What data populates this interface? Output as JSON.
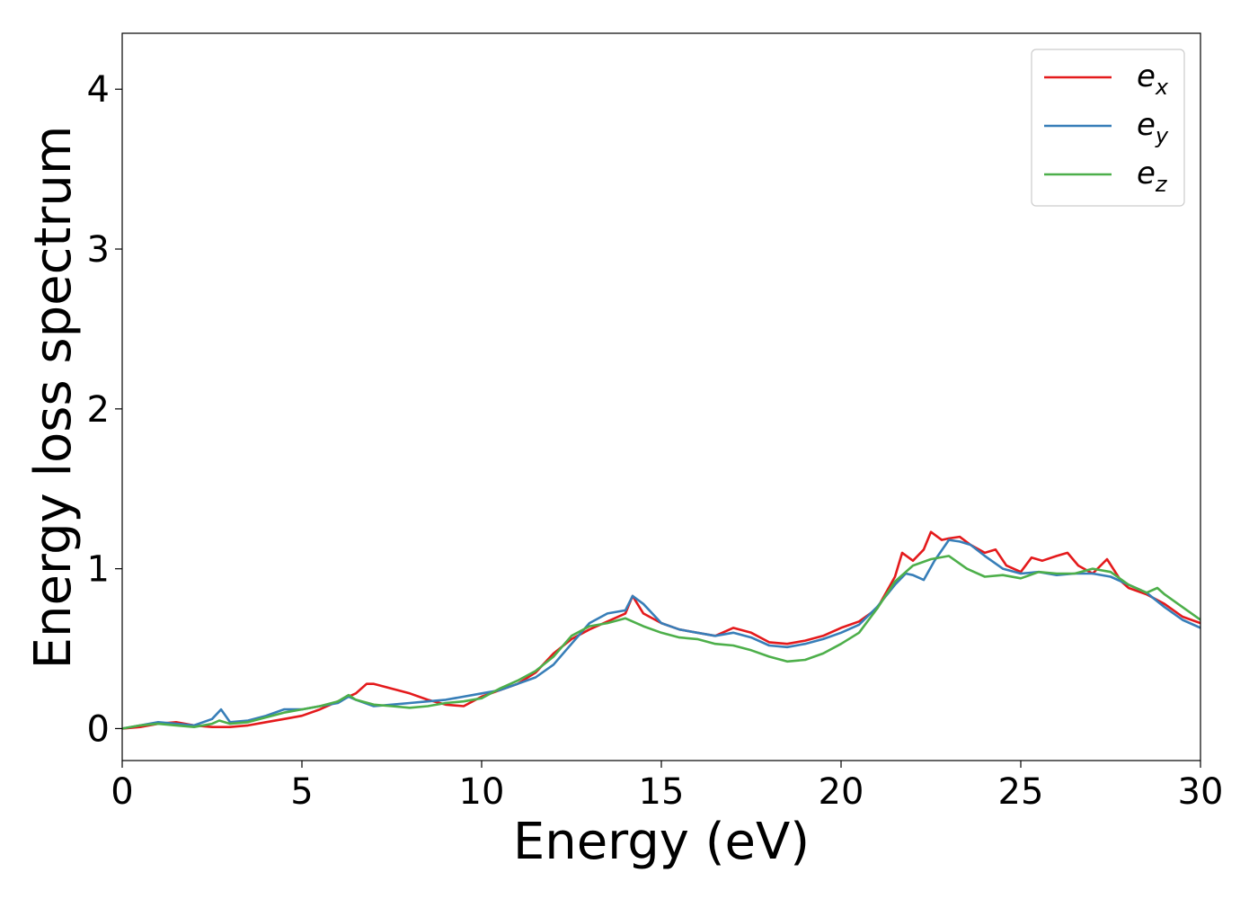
{
  "chart_data": {
    "type": "line",
    "title": "",
    "xlabel": "Energy (eV)",
    "ylabel": "Energy loss spectrum",
    "xlim": [
      0,
      30
    ],
    "ylim": [
      -0.2,
      4.35
    ],
    "xticks": [
      0,
      5,
      10,
      15,
      20,
      25,
      30
    ],
    "yticks": [
      0,
      1,
      2,
      3,
      4
    ],
    "grid": false,
    "legend_position": "top-right",
    "series": [
      {
        "name": "e",
        "subscript": "x",
        "color": "#e41a1c",
        "x": [
          0,
          0.5,
          1.0,
          1.5,
          2.0,
          2.5,
          3.0,
          3.5,
          4.0,
          4.5,
          5.0,
          5.5,
          6.0,
          6.5,
          6.8,
          7.0,
          7.5,
          8.0,
          8.5,
          9.0,
          9.5,
          10.0,
          10.5,
          11.0,
          11.5,
          12.0,
          12.5,
          13.0,
          13.5,
          14.0,
          14.2,
          14.5,
          15.0,
          15.5,
          16.0,
          16.5,
          17.0,
          17.5,
          18.0,
          18.5,
          19.0,
          19.5,
          20.0,
          20.5,
          21.0,
          21.5,
          21.7,
          22.0,
          22.3,
          22.5,
          22.8,
          23.0,
          23.3,
          23.6,
          24.0,
          24.3,
          24.6,
          25.0,
          25.3,
          25.6,
          26.0,
          26.3,
          26.6,
          27.0,
          27.4,
          27.8,
          28.0,
          28.5,
          29.0,
          29.5,
          30.0
        ],
        "y": [
          0.0,
          0.01,
          0.03,
          0.04,
          0.02,
          0.01,
          0.01,
          0.02,
          0.04,
          0.06,
          0.08,
          0.12,
          0.17,
          0.22,
          0.28,
          0.28,
          0.25,
          0.22,
          0.18,
          0.15,
          0.14,
          0.2,
          0.24,
          0.28,
          0.35,
          0.47,
          0.56,
          0.62,
          0.67,
          0.72,
          0.83,
          0.72,
          0.66,
          0.62,
          0.6,
          0.58,
          0.63,
          0.6,
          0.54,
          0.53,
          0.55,
          0.58,
          0.63,
          0.67,
          0.75,
          0.95,
          1.1,
          1.05,
          1.12,
          1.23,
          1.18,
          1.19,
          1.2,
          1.15,
          1.1,
          1.12,
          1.02,
          0.98,
          1.07,
          1.05,
          1.08,
          1.1,
          1.02,
          0.97,
          1.06,
          0.92,
          0.88,
          0.84,
          0.78,
          0.7,
          0.66
        ]
      },
      {
        "name": "e",
        "subscript": "y",
        "color": "#377eb8",
        "x": [
          0,
          0.5,
          1.0,
          1.5,
          2.0,
          2.5,
          2.75,
          3.0,
          3.5,
          4.0,
          4.5,
          5.0,
          5.5,
          6.0,
          6.3,
          6.5,
          7.0,
          7.5,
          8.0,
          8.5,
          9.0,
          9.5,
          10.0,
          10.5,
          11.0,
          11.5,
          12.0,
          12.5,
          13.0,
          13.5,
          14.0,
          14.2,
          14.5,
          15.0,
          15.5,
          16.0,
          16.5,
          17.0,
          17.5,
          18.0,
          18.5,
          19.0,
          19.5,
          20.0,
          20.5,
          21.0,
          21.5,
          21.8,
          22.0,
          22.3,
          22.6,
          23.0,
          23.3,
          23.6,
          24.0,
          24.5,
          25.0,
          25.5,
          26.0,
          26.5,
          27.0,
          27.5,
          28.0,
          28.5,
          29.0,
          29.5,
          30.0
        ],
        "y": [
          0.0,
          0.02,
          0.04,
          0.03,
          0.02,
          0.06,
          0.12,
          0.04,
          0.05,
          0.08,
          0.12,
          0.12,
          0.14,
          0.16,
          0.2,
          0.18,
          0.14,
          0.15,
          0.16,
          0.17,
          0.18,
          0.2,
          0.22,
          0.24,
          0.28,
          0.32,
          0.4,
          0.53,
          0.66,
          0.72,
          0.74,
          0.83,
          0.78,
          0.66,
          0.62,
          0.6,
          0.58,
          0.6,
          0.57,
          0.52,
          0.51,
          0.53,
          0.56,
          0.6,
          0.65,
          0.76,
          0.9,
          0.97,
          0.96,
          0.93,
          1.05,
          1.18,
          1.17,
          1.15,
          1.08,
          1.0,
          0.97,
          0.98,
          0.96,
          0.97,
          0.97,
          0.95,
          0.9,
          0.85,
          0.76,
          0.68,
          0.63
        ]
      },
      {
        "name": "e",
        "subscript": "z",
        "color": "#4daf4a",
        "x": [
          0,
          0.5,
          1.0,
          1.5,
          2.0,
          2.5,
          2.7,
          3.0,
          3.5,
          4.0,
          4.5,
          5.0,
          5.5,
          6.0,
          6.3,
          6.5,
          7.0,
          7.5,
          8.0,
          8.5,
          9.0,
          9.5,
          10.0,
          10.5,
          11.0,
          11.5,
          12.0,
          12.5,
          13.0,
          13.5,
          14.0,
          14.5,
          15.0,
          15.5,
          16.0,
          16.5,
          17.0,
          17.5,
          18.0,
          18.5,
          19.0,
          19.5,
          20.0,
          20.5,
          21.0,
          21.5,
          22.0,
          22.5,
          23.0,
          23.5,
          24.0,
          24.5,
          25.0,
          25.5,
          26.0,
          26.5,
          27.0,
          27.5,
          28.0,
          28.5,
          28.8,
          29.0,
          29.5,
          30.0
        ],
        "y": [
          0.0,
          0.02,
          0.03,
          0.02,
          0.01,
          0.03,
          0.05,
          0.03,
          0.04,
          0.07,
          0.1,
          0.12,
          0.14,
          0.17,
          0.21,
          0.18,
          0.15,
          0.14,
          0.13,
          0.14,
          0.16,
          0.17,
          0.19,
          0.25,
          0.3,
          0.36,
          0.45,
          0.58,
          0.64,
          0.66,
          0.69,
          0.64,
          0.6,
          0.57,
          0.56,
          0.53,
          0.52,
          0.49,
          0.45,
          0.42,
          0.43,
          0.47,
          0.53,
          0.6,
          0.75,
          0.92,
          1.02,
          1.06,
          1.08,
          1.0,
          0.95,
          0.96,
          0.94,
          0.98,
          0.97,
          0.97,
          1.0,
          0.98,
          0.9,
          0.85,
          0.88,
          0.84,
          0.76,
          0.68
        ]
      }
    ]
  }
}
